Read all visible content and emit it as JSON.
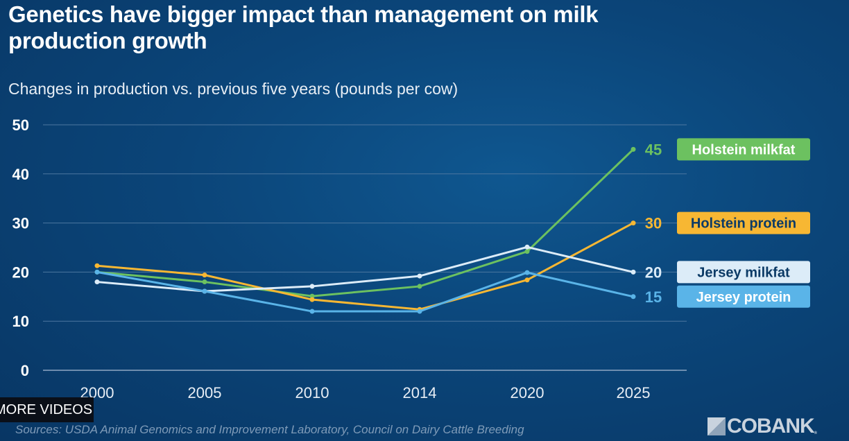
{
  "title": "Genetics have bigger impact than management on milk production growth",
  "subtitle": "Changes in production vs. previous five years (pounds per cow)",
  "overlay_button": "MORE VIDEOS",
  "source": "Sources: USDA Animal Genomics and Improvement Laboratory, Council on Dairy Cattle Breeding",
  "logo": "COBANK",
  "chart_data": {
    "type": "line",
    "categories": [
      "2000",
      "2005",
      "2010",
      "2014",
      "2020",
      "2025"
    ],
    "ylim": [
      0,
      50
    ],
    "yticks": [
      0,
      10,
      20,
      30,
      40,
      50
    ],
    "grid": true,
    "legend": "right (end labels)",
    "series": [
      {
        "name": "Holstein milkfat",
        "color": "#6cc160",
        "label_text_color": "#ffffff",
        "end_label": "45",
        "values": [
          20,
          18,
          15.1,
          17.1,
          24.2,
          45
        ]
      },
      {
        "name": "Holstein protein",
        "color": "#f7b733",
        "label_text_color": "#0b3a66",
        "end_label": "30",
        "values": [
          21.3,
          19.4,
          14.4,
          12.4,
          18.4,
          30
        ]
      },
      {
        "name": "Jersey milkfat",
        "color": "#dcecf8",
        "label_text_color": "#0b3a66",
        "end_label": "20",
        "values": [
          18,
          16.1,
          17.1,
          19.2,
          25.1,
          20
        ]
      },
      {
        "name": "Jersey protein",
        "color": "#5ab4e8",
        "label_text_color": "#ffffff",
        "end_label": "15",
        "values": [
          20,
          16.1,
          12,
          12,
          19.9,
          15
        ]
      }
    ]
  }
}
